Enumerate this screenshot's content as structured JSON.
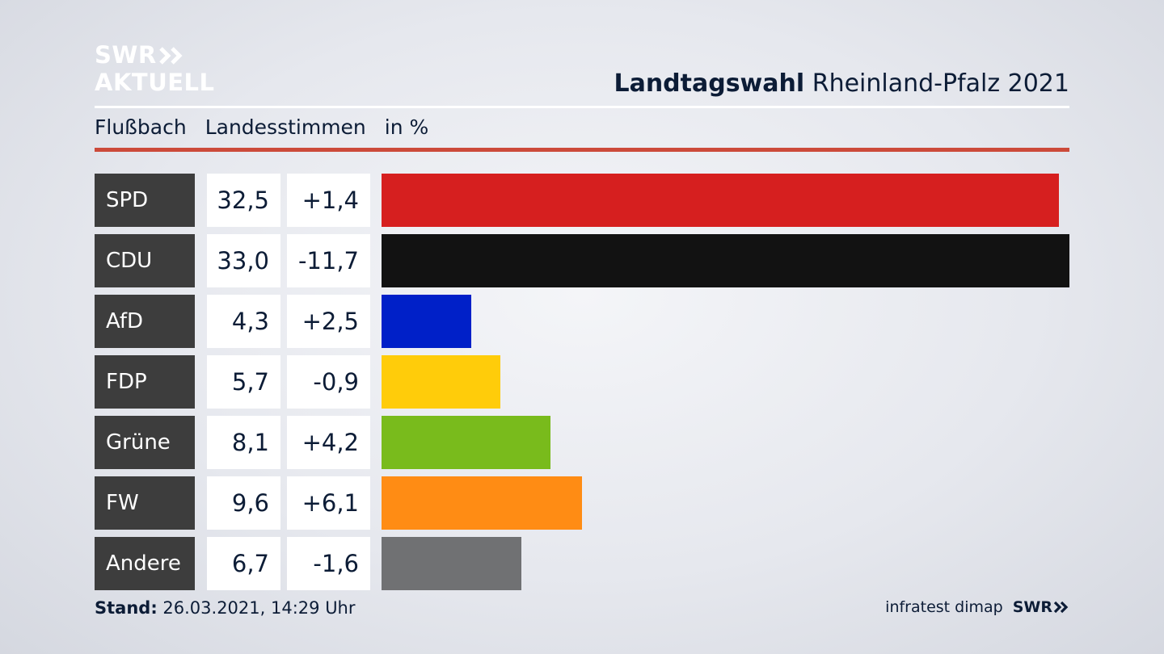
{
  "logo": {
    "line1": "SWR",
    "line2": "AKTUELL"
  },
  "header": {
    "title_bold": "Landtagswahl",
    "title_rest": "Rheinland-Pfalz 2021"
  },
  "subtitle": {
    "place": "Flußbach",
    "measure": "Landesstimmen",
    "unit": "in %"
  },
  "chart_data": {
    "type": "bar",
    "categories": [
      "SPD",
      "CDU",
      "AfD",
      "FDP",
      "Grüne",
      "FW",
      "Andere"
    ],
    "values": [
      32.5,
      33.0,
      4.3,
      5.7,
      8.1,
      9.6,
      6.7
    ],
    "value_labels": [
      "32,5",
      "33,0",
      "4,3",
      "5,7",
      "8,1",
      "9,6",
      "6,7"
    ],
    "change_labels": [
      "+1,4",
      "-11,7",
      "+2,5",
      "-0,9",
      "+4,2",
      "+6,1",
      "-1,6"
    ],
    "changes": [
      1.4,
      -11.7,
      2.5,
      -0.9,
      4.2,
      6.1,
      -1.6
    ],
    "colors": [
      "#d61f1f",
      "#121212",
      "#0020c8",
      "#ffcc0a",
      "#79bb1c",
      "#ff8c14",
      "#707173"
    ],
    "orientation": "horizontal",
    "xlim": [
      0,
      33.0
    ]
  },
  "footer": {
    "stand_label": "Stand:",
    "stand_value": "26.03.2021, 14:29 Uhr",
    "source": "infratest dimap",
    "brand": "SWR"
  }
}
